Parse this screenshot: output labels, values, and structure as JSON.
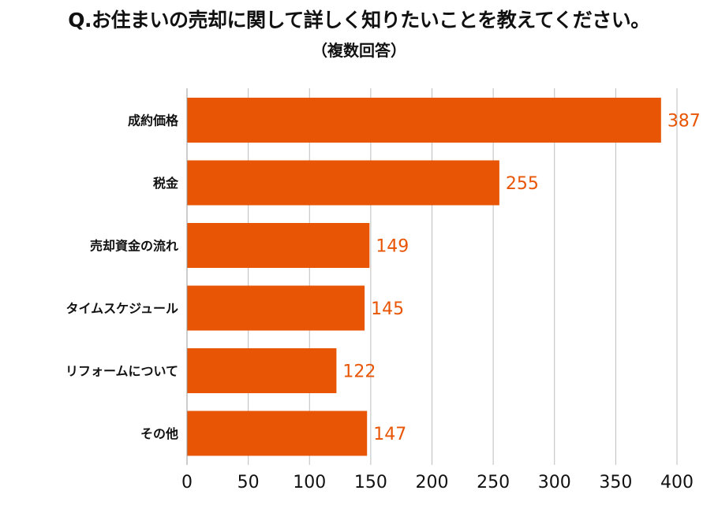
{
  "chart_data": {
    "type": "bar",
    "orientation": "horizontal",
    "title": "Q.お住まいの売却に関して詳しく知りたいことを教えてください。",
    "subtitle": "（複数回答）",
    "categories": [
      "成約価格",
      "税金",
      "売却資金の流れ",
      "タイムスケジュール",
      "リフォームについて",
      "その他"
    ],
    "values": [
      387,
      255,
      149,
      145,
      122,
      147
    ],
    "xlim": [
      0,
      400
    ],
    "xticks": [
      0,
      50,
      100,
      150,
      200,
      250,
      300,
      350,
      400
    ],
    "grid": true,
    "bar_color": "#E85504",
    "label_color": "#E85504"
  }
}
